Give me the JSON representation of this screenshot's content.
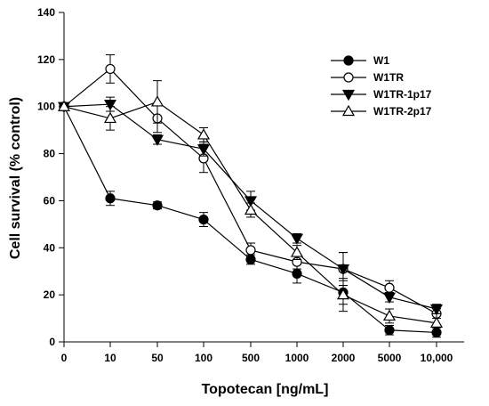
{
  "chart_data": {
    "type": "line",
    "title": "",
    "xlabel": "Topotecan [ng/mL]",
    "ylabel": "Cell survival (% control)",
    "categories": [
      "0",
      "10",
      "50",
      "100",
      "500",
      "1000",
      "2000",
      "5000",
      "10,000"
    ],
    "ylim": [
      0,
      140
    ],
    "yticks": [
      0,
      20,
      40,
      60,
      80,
      100,
      120,
      140
    ],
    "grid": false,
    "legend_position": "top-right",
    "colors": {
      "line": "#000000",
      "marker_fill": "#000000",
      "marker_open": "#ffffff"
    },
    "series": [
      {
        "name": "W1",
        "marker": "filled-circle",
        "values": [
          100,
          61,
          58,
          52,
          35,
          29,
          21,
          5,
          4
        ],
        "errors": [
          0,
          3,
          1.5,
          3,
          2,
          4,
          5,
          2,
          2
        ]
      },
      {
        "name": "W1TR",
        "marker": "open-circle",
        "values": [
          100,
          116,
          95,
          78,
          39,
          34,
          31,
          23,
          12
        ],
        "errors": [
          0,
          6,
          6,
          6,
          3,
          3,
          7,
          3,
          2
        ]
      },
      {
        "name": "W1TR-1p17",
        "marker": "filled-triangle-down",
        "values": [
          100,
          101,
          86,
          82,
          60,
          44,
          31,
          19,
          14
        ],
        "errors": [
          0,
          3,
          2,
          3,
          4,
          2,
          7,
          2,
          2
        ]
      },
      {
        "name": "W1TR-2p17",
        "marker": "open-triangle-up",
        "values": [
          100,
          95,
          102,
          88,
          56,
          38,
          20,
          11,
          8
        ],
        "errors": [
          0,
          5,
          9,
          3,
          3,
          3,
          7,
          3,
          4
        ]
      }
    ]
  }
}
